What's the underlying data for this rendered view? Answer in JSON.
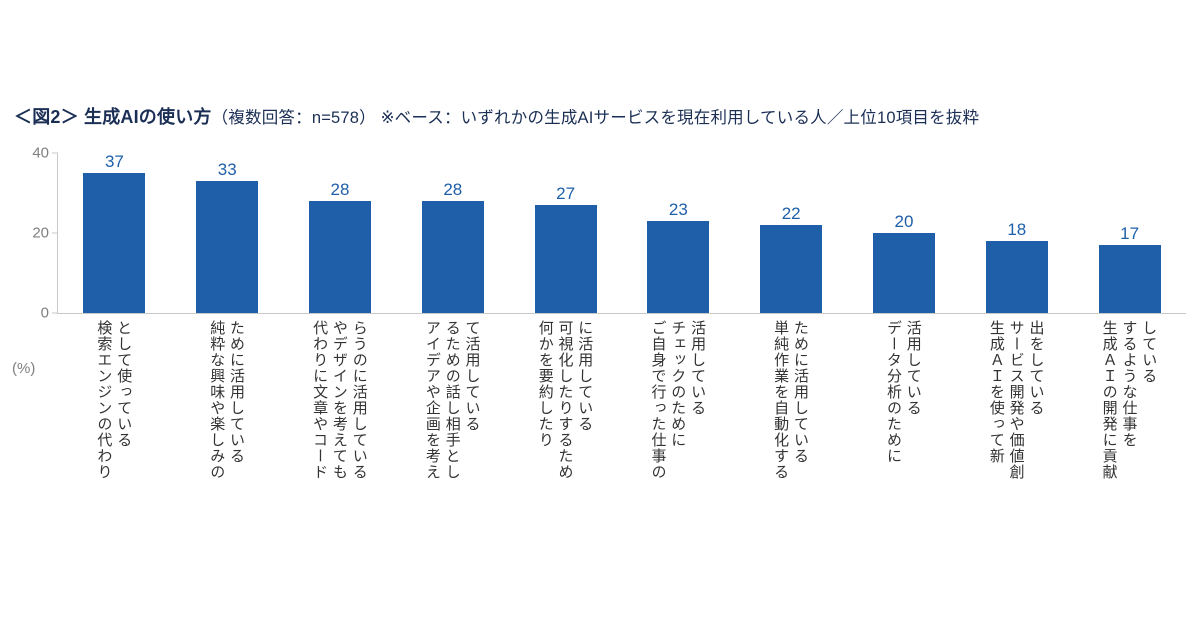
{
  "title": {
    "bold": "＜図2＞ 生成AIの使い方",
    "rest": "（複数回答：n=578） ※ベース：いずれかの生成AIサービスを現在利用している人／上位10項目を抜粋"
  },
  "axis": {
    "unit_label": "(%)"
  },
  "colors": {
    "bar": "#1f5fa9",
    "value_label": "#1f5fa9",
    "title_text": "#1b2f55",
    "axis_text": "#7f7f7f",
    "axis_line": "#c9c9c9",
    "category_text": "#333333",
    "background": "#ffffff"
  },
  "chart_data": {
    "type": "bar",
    "title": "＜図2＞ 生成AIの使い方（複数回答：n=578） ※ベース：いずれかの生成AIサービスを現在利用している人／上位10項目を抜粋",
    "xlabel": "",
    "ylabel": "(%)",
    "ylim": [
      0,
      40
    ],
    "yticks": [
      0,
      20,
      40
    ],
    "grid": false,
    "legend": "none",
    "bar_color": "#1f5fa9",
    "categories": [
      "検索エンジンの代わりとして使っている",
      "純粋な興味や楽しみのために活用している",
      "代わりに文章やコードやデザインを考えてもらうのに活用している",
      "アイデアや企画を考えるための話し相手として活用している",
      "何かを要約したり可視化したりするために活用している",
      "ご自身で行った仕事のチェックのために活用している",
      "単純作業を自動化するために活用している",
      "データ分析のために活用している",
      "生成ＡＩを使って新サービス開発や価値創出をしている",
      "生成ＡＩの開発に貢献するような仕事をしている"
    ],
    "category_lines": [
      [
        "検索エンジンの代わり",
        "として使っている"
      ],
      [
        "純粋な興味や楽しみの",
        "ために活用している"
      ],
      [
        "代わりに文章やコード",
        "やデザインを考えても",
        "らうのに活用している"
      ],
      [
        "アイデアや企画を考え",
        "るための話し相手とし",
        "て活用している"
      ],
      [
        "何かを要約したり",
        "可視化したりするため",
        "に活用している"
      ],
      [
        "ご自身で行った仕事の",
        "チェックのために",
        "活用している"
      ],
      [
        "単純作業を自動化する",
        "ために活用している"
      ],
      [
        "データ分析のために",
        "活用している"
      ],
      [
        "生成ＡＩを使って新",
        "サービス開発や価値創",
        "出をしている"
      ],
      [
        "生成ＡＩの開発に貢献",
        "するような仕事を",
        "している"
      ]
    ],
    "values": [
      37,
      33,
      28,
      28,
      27,
      23,
      22,
      20,
      18,
      17
    ]
  }
}
